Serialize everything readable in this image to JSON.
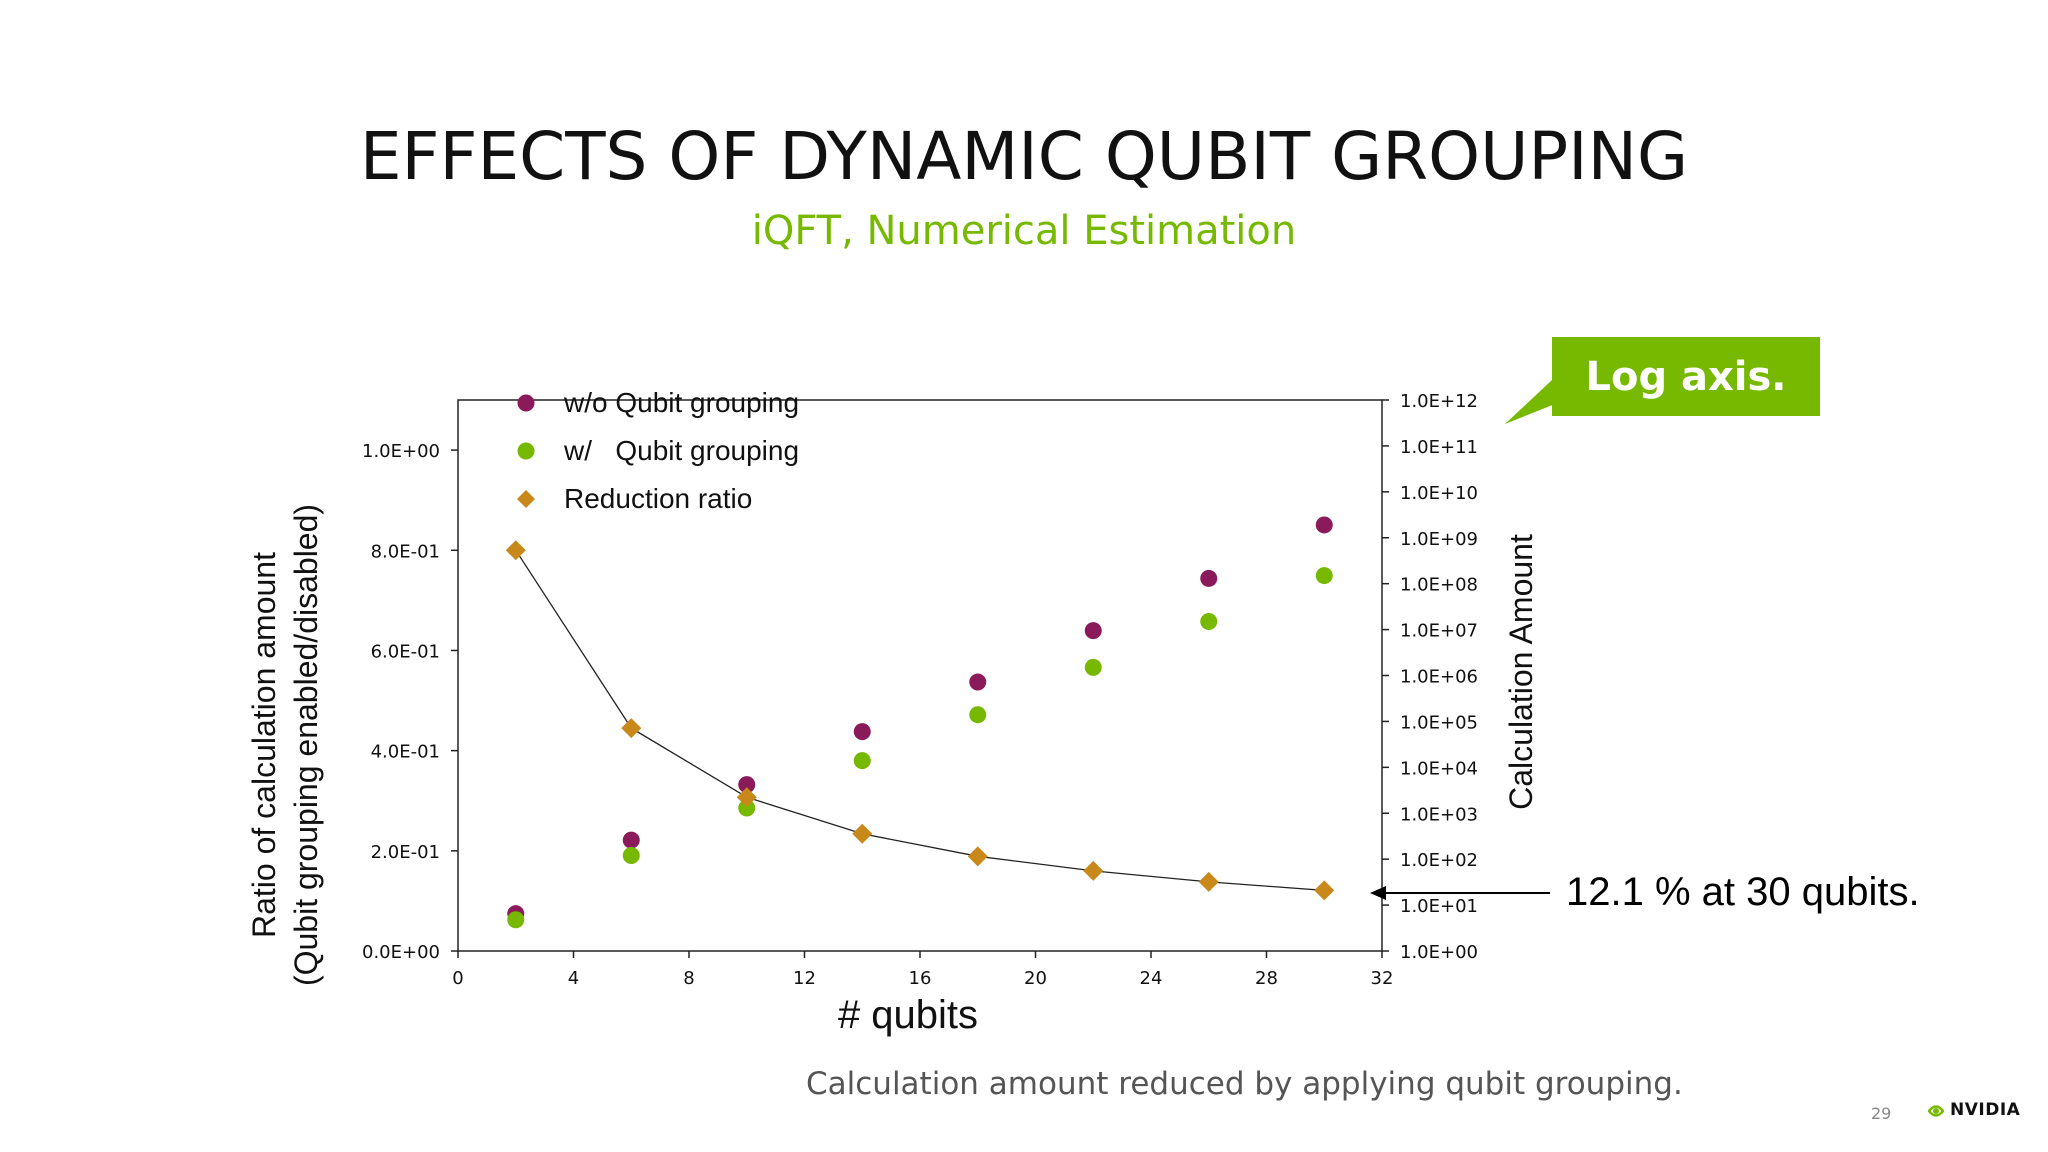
{
  "slide": {
    "title": "EFFECTS OF DYNAMIC QUBIT GROUPING",
    "subtitle": "iQFT, Numerical Estimation",
    "caption": "Calculation amount reduced by applying qubit grouping.",
    "page_number": "29",
    "brand": "NVIDIA",
    "callout": "Log axis.",
    "annotation": "12.1 % at 30 qubits."
  },
  "colors": {
    "accent": "#76b900",
    "without_grouping": "#8b1a5a",
    "with_grouping": "#76b900",
    "reduction_ratio": "#c8891a"
  },
  "chart_data": {
    "type": "scatter",
    "xlabel": "# qubits",
    "ylabel_left": "Ratio of calculation amount",
    "ylabel_left_line2": "(Qubit grouping enabled/disabled)",
    "ylabel_right": "Calculation Amount",
    "xlim": [
      0,
      32
    ],
    "x_ticks": [
      "0",
      "4",
      "8",
      "12",
      "16",
      "20",
      "24",
      "28",
      "32"
    ],
    "ylim_left": [
      0,
      1.1
    ],
    "y_left_ticks": [
      "0.0E+00",
      "2.0E-01",
      "4.0E-01",
      "6.0E-01",
      "8.0E-01",
      "1.0E+00"
    ],
    "y_right_scale": "log",
    "ylim_right_exponent": [
      0,
      12
    ],
    "y_right_ticks": [
      "1.0E+00",
      "1.0E+01",
      "1.0E+02",
      "1.0E+03",
      "1.0E+04",
      "1.0E+05",
      "1.0E+06",
      "1.0E+07",
      "1.0E+08",
      "1.0E+09",
      "1.0E+10",
      "1.0E+11",
      "1.0E+12"
    ],
    "legend_position": "top-left",
    "grid": false,
    "x": [
      2,
      6,
      10,
      14,
      18,
      22,
      26,
      30
    ],
    "series": [
      {
        "name": "w/o Qubit grouping",
        "axis": "right",
        "marker": "circle",
        "values": [
          6.5,
          260.0,
          4200.0,
          60000.0,
          720000.0,
          9500000.0,
          130000000.0,
          1900000000.0
        ]
      },
      {
        "name": "w/   Qubit grouping",
        "axis": "right",
        "marker": "circle",
        "values": [
          4.8,
          120.0,
          1300.0,
          14000.0,
          140000.0,
          1500000.0,
          15000000.0,
          150000000.0
        ]
      },
      {
        "name": "Reduction ratio",
        "axis": "left",
        "marker": "diamond",
        "line": true,
        "values": [
          0.8,
          0.445,
          0.307,
          0.234,
          0.189,
          0.16,
          0.138,
          0.121
        ]
      }
    ]
  }
}
